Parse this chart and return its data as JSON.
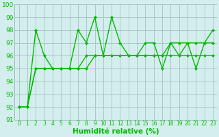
{
  "x": [
    0,
    1,
    2,
    3,
    4,
    5,
    6,
    7,
    8,
    9,
    10,
    11,
    12,
    13,
    14,
    15,
    16,
    17,
    18,
    19,
    20,
    21,
    22,
    23
  ],
  "line1": [
    92,
    92,
    98,
    96,
    95,
    95,
    95,
    98,
    97,
    99,
    96,
    99,
    97,
    96,
    96,
    97,
    97,
    95,
    97,
    96,
    97,
    95,
    97,
    98
  ],
  "line2": [
    92,
    92,
    95,
    95,
    95,
    95,
    95,
    95,
    95,
    96,
    96,
    96,
    96,
    96,
    96,
    96,
    96,
    96,
    96,
    96,
    96,
    96,
    96,
    96
  ],
  "line3": [
    92,
    92,
    95,
    95,
    95,
    95,
    95,
    95,
    96,
    96,
    96,
    96,
    96,
    96,
    96,
    96,
    96,
    96,
    97,
    97,
    97,
    97,
    97,
    97
  ],
  "xlabel": "Humidité relative (%)",
  "ylim": [
    91,
    100
  ],
  "xlim": [
    -0.5,
    23.5
  ],
  "yticks": [
    91,
    92,
    93,
    94,
    95,
    96,
    97,
    98,
    99,
    100
  ],
  "xtick_labels": [
    "0",
    "1",
    "2",
    "3",
    "4",
    "5",
    "6",
    "7",
    "8",
    "9",
    "10",
    "11",
    "12",
    "13",
    "14",
    "15",
    "16",
    "17",
    "18",
    "19",
    "20",
    "21",
    "22",
    "23"
  ],
  "line_color": "#00bb00",
  "bg_color": "#d4eeed",
  "grid_color": "#99bbbb",
  "markersize": 2.5,
  "linewidth": 1.0,
  "fig_width": 3.2,
  "fig_height": 2.0,
  "dpi": 100
}
